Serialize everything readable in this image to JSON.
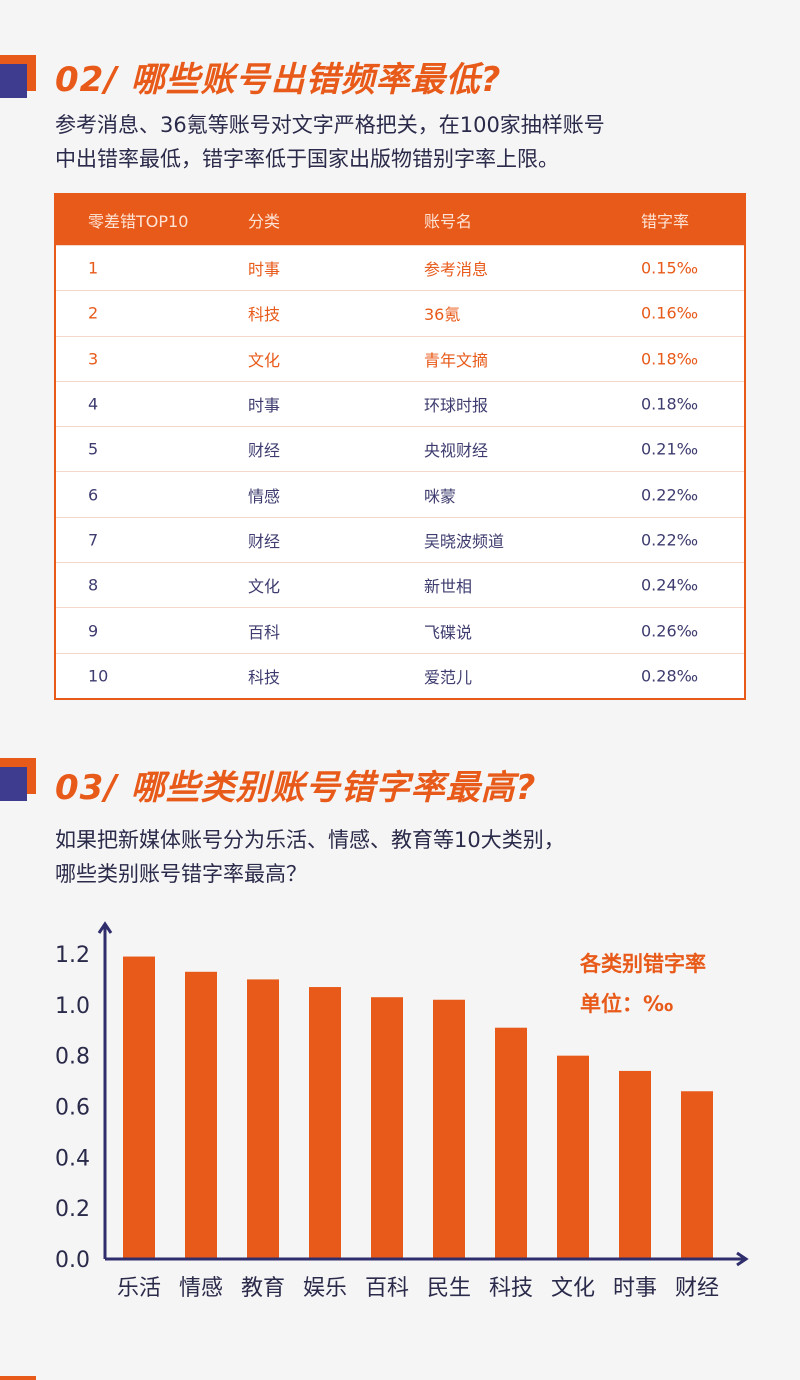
{
  "section2": {
    "title": "02/ 哪些账号出错频率最低?",
    "para_line1": "参考消息、36氪等账号对文字严格把关，在100家抽样账号",
    "para_line2": "中出错率最低，错字率低于国家出版物错别字率上限。",
    "table": {
      "headers": [
        "零差错TOP10",
        "分类",
        "账号名",
        "错字率"
      ],
      "rows": [
        [
          "1",
          "时事",
          "参考消息",
          "0.15‰"
        ],
        [
          "2",
          "科技",
          "36氪",
          "0.16‰"
        ],
        [
          "3",
          "文化",
          "青年文摘",
          "0.18‰"
        ],
        [
          "4",
          "时事",
          "环球时报",
          "0.18‰"
        ],
        [
          "5",
          "财经",
          "央视财经",
          "0.21‰"
        ],
        [
          "6",
          "情感",
          "咪蒙",
          "0.22‰"
        ],
        [
          "7",
          "财经",
          "吴晓波频道",
          "0.22‰"
        ],
        [
          "8",
          "文化",
          "新世相",
          "0.24‰"
        ],
        [
          "9",
          "百科",
          "飞碟说",
          "0.26‰"
        ],
        [
          "10",
          "科技",
          "爱范儿",
          "0.28‰"
        ]
      ]
    }
  },
  "section3": {
    "title": "03/ 哪些类别账号错字率最高?",
    "para_line1": "如果把新媒体账号分为乐活、情感、教育等10大类别，",
    "para_line2": "哪些类别账号错字率最高？"
  },
  "colors": {
    "accent": "#e85a19",
    "navy": "#3e3c8f",
    "axis": "#2f2d6b"
  },
  "chart_data": {
    "type": "bar",
    "title": "各类别错字率",
    "unit_label": "单位：‰",
    "categories": [
      "乐活",
      "情感",
      "教育",
      "娱乐",
      "百科",
      "民生",
      "科技",
      "文化",
      "时事",
      "财经"
    ],
    "values": [
      1.19,
      1.13,
      1.1,
      1.07,
      1.03,
      1.02,
      0.91,
      0.8,
      0.74,
      0.66
    ],
    "yticks": [
      "0.0",
      "0.2",
      "0.4",
      "0.6",
      "0.8",
      "1.0",
      "1.2"
    ],
    "ylim": [
      0,
      1.2
    ],
    "xlabel": "",
    "ylabel": "",
    "grid": false
  }
}
